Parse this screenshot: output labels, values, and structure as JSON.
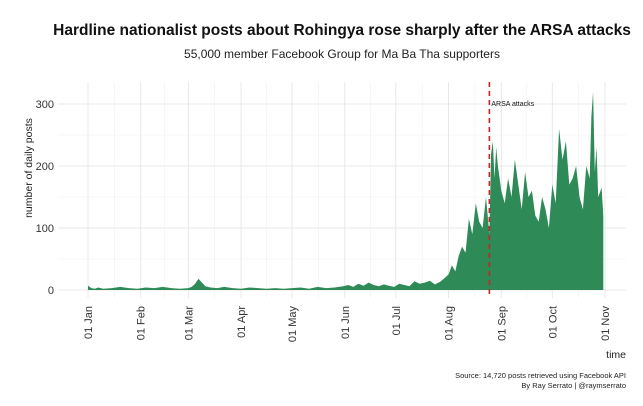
{
  "chart_data": {
    "type": "area",
    "title": "Hardline nationalist posts about Rohingya rose sharply after the ARSA attacks",
    "subtitle": "55,000 member Facebook Group for Ma Ba Tha supporters",
    "xlabel": "time",
    "ylabel": "number of daily posts",
    "x_start": "2017-01-01",
    "x_end": "2017-11-01",
    "ylim": [
      0,
      330
    ],
    "y_ticks": [
      0,
      100,
      200,
      300
    ],
    "x_ticks": [
      "01 Jan",
      "01 Feb",
      "01 Mar",
      "01 Apr",
      "01 May",
      "01 Jun",
      "01 Jul",
      "01 Aug",
      "01 Sep",
      "01 Oct",
      "01 Nov"
    ],
    "x_tick_dates": [
      "2017-01-01",
      "2017-02-01",
      "2017-03-01",
      "2017-04-01",
      "2017-05-01",
      "2017-06-01",
      "2017-07-01",
      "2017-08-01",
      "2017-09-01",
      "2017-10-01",
      "2017-11-01"
    ],
    "grid": true,
    "fill_color": "#2e8b57",
    "marker_color": "#cc2222",
    "annotation": {
      "label": "ARSA attacks",
      "date": "2017-08-25"
    },
    "caption_lines": [
      "Source: 14,720 posts retrieved using Facebook API",
      "By Ray Serrato | @raymserrato"
    ],
    "series": [
      {
        "x": [
          "2017-01-01",
          "2017-01-03",
          "2017-01-05",
          "2017-01-07",
          "2017-01-10",
          "2017-01-15",
          "2017-01-20",
          "2017-01-25",
          "2017-01-30",
          "2017-02-04",
          "2017-02-09",
          "2017-02-14",
          "2017-02-19",
          "2017-02-24",
          "2017-03-01",
          "2017-03-03",
          "2017-03-05",
          "2017-03-07",
          "2017-03-09",
          "2017-03-11",
          "2017-03-14",
          "2017-03-18",
          "2017-03-22",
          "2017-03-27",
          "2017-04-01",
          "2017-04-06",
          "2017-04-11",
          "2017-04-16",
          "2017-04-21",
          "2017-04-26",
          "2017-05-01",
          "2017-05-06",
          "2017-05-11",
          "2017-05-16",
          "2017-05-21",
          "2017-05-26",
          "2017-05-31",
          "2017-06-03",
          "2017-06-06",
          "2017-06-09",
          "2017-06-12",
          "2017-06-15",
          "2017-06-18",
          "2017-06-21",
          "2017-06-24",
          "2017-06-27",
          "2017-06-30",
          "2017-07-03",
          "2017-07-06",
          "2017-07-09",
          "2017-07-12",
          "2017-07-15",
          "2017-07-18",
          "2017-07-21",
          "2017-07-24",
          "2017-07-27",
          "2017-07-30",
          "2017-08-01",
          "2017-08-03",
          "2017-08-05",
          "2017-08-07",
          "2017-08-09",
          "2017-08-11",
          "2017-08-13",
          "2017-08-15",
          "2017-08-17",
          "2017-08-19",
          "2017-08-21",
          "2017-08-23",
          "2017-08-24",
          "2017-08-25",
          "2017-08-26",
          "2017-08-27",
          "2017-08-28",
          "2017-08-29",
          "2017-08-30",
          "2017-09-01",
          "2017-09-03",
          "2017-09-05",
          "2017-09-07",
          "2017-09-09",
          "2017-09-11",
          "2017-09-13",
          "2017-09-15",
          "2017-09-17",
          "2017-09-19",
          "2017-09-21",
          "2017-09-23",
          "2017-09-25",
          "2017-09-27",
          "2017-09-29",
          "2017-10-01",
          "2017-10-03",
          "2017-10-05",
          "2017-10-07",
          "2017-10-09",
          "2017-10-11",
          "2017-10-13",
          "2017-10-15",
          "2017-10-17",
          "2017-10-19",
          "2017-10-21",
          "2017-10-23",
          "2017-10-24",
          "2017-10-25",
          "2017-10-26",
          "2017-10-27",
          "2017-10-28",
          "2017-10-30",
          "2017-10-31"
        ],
        "y": [
          7,
          3,
          2,
          4,
          2,
          3,
          5,
          3,
          2,
          4,
          3,
          5,
          3,
          2,
          3,
          5,
          10,
          18,
          12,
          6,
          4,
          3,
          5,
          3,
          2,
          4,
          3,
          2,
          3,
          2,
          3,
          4,
          2,
          5,
          3,
          4,
          6,
          8,
          5,
          10,
          7,
          12,
          8,
          6,
          9,
          7,
          5,
          10,
          8,
          6,
          14,
          10,
          12,
          15,
          9,
          13,
          20,
          25,
          40,
          30,
          55,
          70,
          60,
          115,
          90,
          140,
          110,
          100,
          150,
          120,
          90,
          220,
          240,
          180,
          230,
          200,
          160,
          140,
          180,
          150,
          210,
          170,
          130,
          190,
          150,
          160,
          120,
          110,
          150,
          130,
          100,
          170,
          140,
          260,
          210,
          240,
          170,
          180,
          200,
          150,
          130,
          200,
          180,
          280,
          320,
          190,
          230,
          150,
          165,
          120
        ]
      }
    ]
  }
}
